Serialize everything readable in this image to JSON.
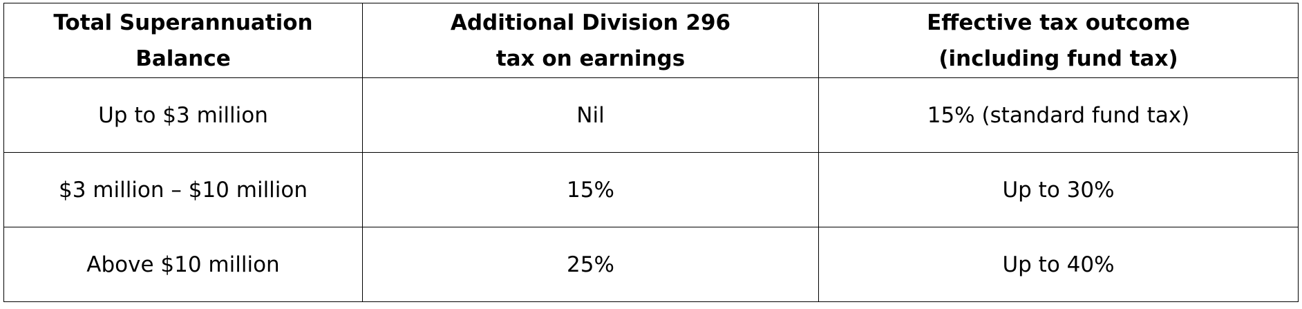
{
  "table": {
    "headers": [
      {
        "line1": "Total Superannuation",
        "line2": "Balance"
      },
      {
        "line1": "Additional Division 296",
        "line2": "tax on earnings"
      },
      {
        "line1": "Effective tax outcome",
        "line2": "(including fund tax)"
      }
    ],
    "rows": [
      [
        "Up to $3 million",
        "Nil",
        "15% (standard fund tax)"
      ],
      [
        "$3 million – $10 million",
        "15%",
        "Up to 30%"
      ],
      [
        "Above $10 million",
        "25%",
        "Up to 40%"
      ]
    ]
  }
}
